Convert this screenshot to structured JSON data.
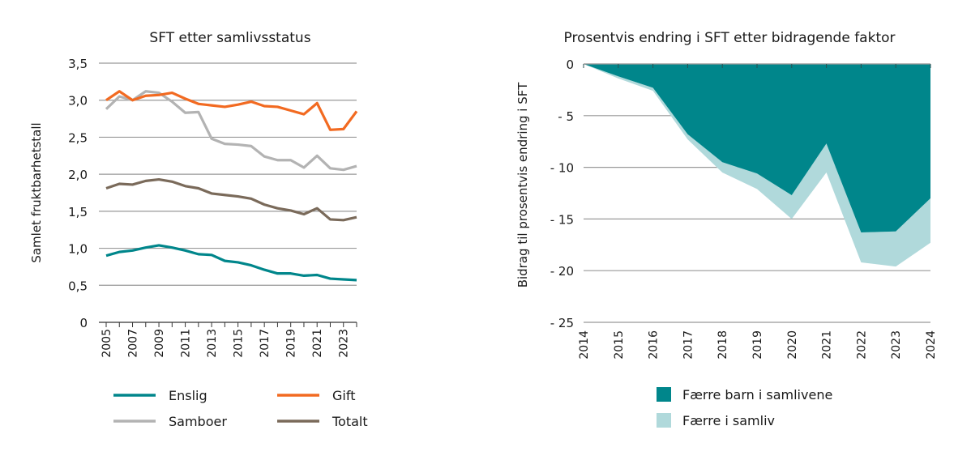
{
  "chart_data": [
    {
      "type": "line",
      "title": "SFT etter samlivsstatus",
      "ylabel": "Samlet fruktbarhetstall",
      "xlabel": "",
      "x": [
        2005,
        2006,
        2007,
        2008,
        2009,
        2010,
        2011,
        2012,
        2013,
        2014,
        2015,
        2016,
        2017,
        2018,
        2019,
        2020,
        2021,
        2022,
        2023,
        2024
      ],
      "x_tick_labels": [
        "2005",
        "2007",
        "2009",
        "2011",
        "2013",
        "2015",
        "2017",
        "2019",
        "2021",
        "2023"
      ],
      "ylim": [
        0,
        3.5
      ],
      "y_ticks": [
        0,
        0.5,
        1,
        1.5,
        2,
        2.5,
        3,
        3.5
      ],
      "y_tick_labels": [
        "0",
        "0,5",
        "1,0",
        "1,5",
        "2,0",
        "2,5",
        "3,0",
        "3,5"
      ],
      "grid": true,
      "legend_placement": "bottom",
      "series": [
        {
          "name": "Enslig",
          "color": "#00868b",
          "values": [
            0.9,
            0.95,
            0.97,
            1.01,
            1.04,
            1.01,
            0.97,
            0.92,
            0.91,
            0.83,
            0.81,
            0.77,
            0.71,
            0.66,
            0.66,
            0.63,
            0.64,
            0.59,
            0.58,
            0.57
          ]
        },
        {
          "name": "Gift",
          "color": "#f26a21",
          "values": [
            3.0,
            3.12,
            3.0,
            3.06,
            3.07,
            3.1,
            3.02,
            2.95,
            2.93,
            2.91,
            2.94,
            2.98,
            2.92,
            2.91,
            2.86,
            2.81,
            2.96,
            2.6,
            2.61,
            2.85
          ]
        },
        {
          "name": "Samboer",
          "color": "#b3b3b3",
          "values": [
            2.88,
            3.05,
            3.0,
            3.12,
            3.1,
            2.98,
            2.83,
            2.84,
            2.48,
            2.41,
            2.4,
            2.38,
            2.24,
            2.19,
            2.19,
            2.09,
            2.25,
            2.08,
            2.06,
            2.11
          ]
        },
        {
          "name": "Totalt",
          "color": "#7a6a5a",
          "values": [
            1.81,
            1.87,
            1.86,
            1.91,
            1.93,
            1.9,
            1.84,
            1.81,
            1.74,
            1.72,
            1.7,
            1.67,
            1.59,
            1.54,
            1.51,
            1.46,
            1.54,
            1.39,
            1.38,
            1.42
          ]
        }
      ]
    },
    {
      "type": "area",
      "stacked": true,
      "title": "Prosentvis endring i SFT etter bidragende faktor",
      "ylabel": "Bidrag til prosentvis endring i SFT",
      "xlabel": "",
      "x": [
        2014,
        2015,
        2016,
        2017,
        2018,
        2019,
        2020,
        2021,
        2022,
        2023,
        2024
      ],
      "x_tick_labels": [
        "2014",
        "2015",
        "2016",
        "2017",
        "2018",
        "2019",
        "2020",
        "2021",
        "2022",
        "2023",
        "2024"
      ],
      "ylim": [
        -25,
        0
      ],
      "y_ticks": [
        0,
        -5,
        -10,
        -15,
        -20,
        -25
      ],
      "y_tick_labels": [
        "0",
        "- 5",
        "- 10",
        "- 15",
        "- 20",
        "- 25"
      ],
      "grid": true,
      "legend_placement": "bottom",
      "series": [
        {
          "name": "Færre barn i samlivene",
          "color": "#00868b",
          "values": [
            0,
            -1.2,
            -2.3,
            -6.8,
            -9.5,
            -10.6,
            -12.7,
            -7.7,
            -16.3,
            -16.2,
            -13.0
          ]
        },
        {
          "name": "Færre i samliv",
          "color": "#b0d9db",
          "values": [
            0,
            -0.2,
            -0.3,
            -0.5,
            -1.0,
            -1.5,
            -2.3,
            -2.8,
            -2.9,
            -3.4,
            -4.3
          ]
        }
      ]
    }
  ]
}
